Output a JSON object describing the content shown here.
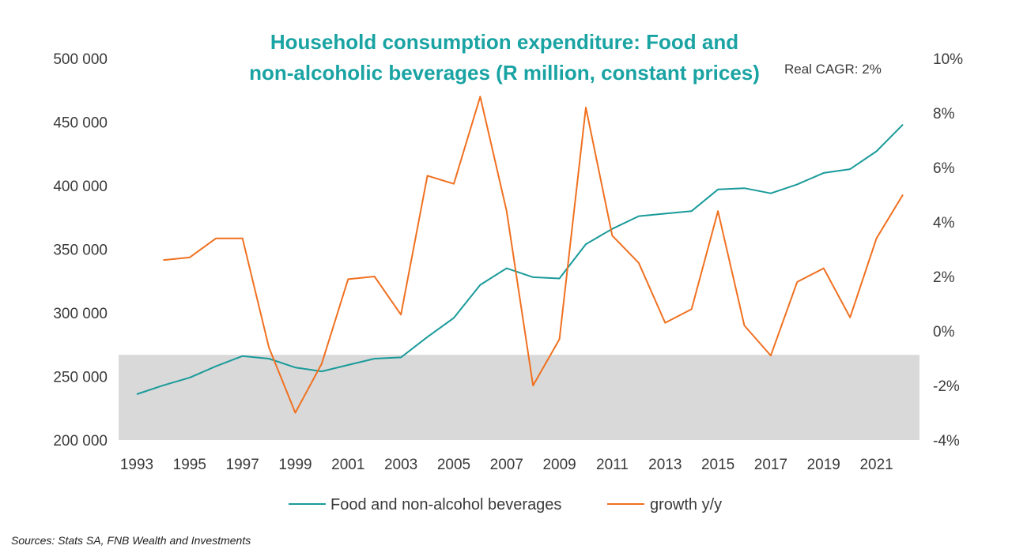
{
  "source_note": "Sources: Stats SA, FNB Wealth and Investments",
  "chart_data": {
    "type": "line",
    "title_lines": [
      "Household consumption expenditure: Food and",
      "non-alcoholic beverages (R million, constant prices)"
    ],
    "annotation": "Real CAGR: 2%",
    "x_tick_labels": [
      "1993",
      "1995",
      "1997",
      "1999",
      "2001",
      "2003",
      "2005",
      "2007",
      "2009",
      "2011",
      "2013",
      "2015",
      "2017",
      "2019",
      "2021"
    ],
    "y_left_tick_labels": [
      "200 000",
      "250 000",
      "300 000",
      "350 000",
      "400 000",
      "450 000",
      "500 000"
    ],
    "y_right_tick_labels": [
      "-4%",
      "-2%",
      "0%",
      "2%",
      "4%",
      "6%",
      "8%",
      "10%"
    ],
    "y_left_range": [
      200000,
      500000
    ],
    "y_right_range": [
      -4,
      10
    ],
    "x_range": [
      1993,
      2022
    ],
    "shaded_band_left_axis": [
      200000,
      267000
    ],
    "legend_position": "bottom-center",
    "grid": false,
    "series": [
      {
        "name": "Food and non-alcohol beverages",
        "axis": "left",
        "color": "#1a9a9a",
        "x": [
          1993,
          1994,
          1995,
          1996,
          1997,
          1998,
          1999,
          2000,
          2001,
          2002,
          2003,
          2004,
          2005,
          2006,
          2007,
          2008,
          2009,
          2010,
          2011,
          2012,
          2013,
          2014,
          2015,
          2016,
          2017,
          2018,
          2019,
          2020,
          2021,
          2022
        ],
        "values": [
          236000,
          243000,
          249000,
          258000,
          266000,
          264000,
          257000,
          254000,
          259000,
          264000,
          265000,
          281000,
          296000,
          322000,
          335000,
          328000,
          327000,
          354000,
          366000,
          376000,
          378000,
          380000,
          397000,
          398000,
          394000,
          401000,
          410000,
          413000,
          427000,
          448000
        ]
      },
      {
        "name": "growth y/y",
        "axis": "right",
        "color": "#f07020",
        "x": [
          1994,
          1995,
          1996,
          1997,
          1998,
          1999,
          2000,
          2001,
          2002,
          2003,
          2004,
          2005,
          2006,
          2007,
          2008,
          2009,
          2010,
          2011,
          2012,
          2013,
          2014,
          2015,
          2016,
          2017,
          2018,
          2019,
          2020,
          2021,
          2022
        ],
        "values": [
          2.6,
          2.7,
          3.4,
          3.4,
          -0.6,
          -3.0,
          -1.2,
          1.9,
          2.0,
          0.6,
          5.7,
          5.4,
          8.6,
          4.4,
          -2.0,
          -0.3,
          8.2,
          3.5,
          2.5,
          0.3,
          0.8,
          4.4,
          0.2,
          -0.9,
          1.8,
          2.3,
          0.5,
          3.4,
          5.0
        ]
      }
    ]
  }
}
